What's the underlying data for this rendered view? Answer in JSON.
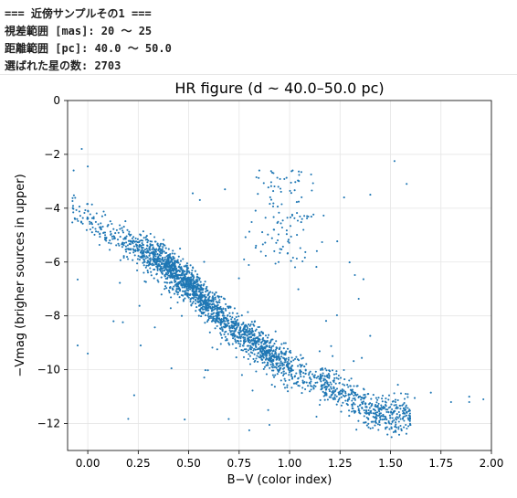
{
  "console": {
    "lines": [
      "=== 近傍サンプルその1 ===",
      "視差範囲 [mas]: 20 〜 25",
      "距離範囲 [pc]: 40.0 〜 50.0",
      "選ばれた星の数: 2703"
    ]
  },
  "chart_data": {
    "type": "scatter",
    "title": "HR figure (d ~ 40.0–50.0 pc)",
    "xlabel": "B−V (color index)",
    "ylabel": "−Vmag (brigher sources in upper)",
    "xlim": [
      -0.1,
      2.0
    ],
    "ylim": [
      0,
      -13
    ],
    "xticks": [
      "0.00",
      "0.25",
      "0.50",
      "0.75",
      "1.00",
      "1.25",
      "1.50",
      "1.75",
      "2.00"
    ],
    "yticks": [
      "0",
      "−2",
      "−4",
      "−6",
      "−8",
      "−10",
      "−12"
    ],
    "grid": true,
    "point_color": "#1f77b4",
    "n_points": 2703,
    "main_sequence_trend": [
      {
        "bv": -0.05,
        "neg_vmag": -4.0
      },
      {
        "bv": 0.05,
        "neg_vmag": -4.8
      },
      {
        "bv": 0.2,
        "neg_vmag": -5.3
      },
      {
        "bv": 0.35,
        "neg_vmag": -5.9
      },
      {
        "bv": 0.5,
        "neg_vmag": -6.8
      },
      {
        "bv": 0.6,
        "neg_vmag": -7.6
      },
      {
        "bv": 0.7,
        "neg_vmag": -8.3
      },
      {
        "bv": 0.8,
        "neg_vmag": -8.9
      },
      {
        "bv": 0.9,
        "neg_vmag": -9.4
      },
      {
        "bv": 1.0,
        "neg_vmag": -9.9
      },
      {
        "bv": 1.1,
        "neg_vmag": -10.3
      },
      {
        "bv": 1.2,
        "neg_vmag": -10.6
      },
      {
        "bv": 1.3,
        "neg_vmag": -11.0
      },
      {
        "bv": 1.4,
        "neg_vmag": -11.5
      },
      {
        "bv": 1.5,
        "neg_vmag": -11.7
      }
    ],
    "giant_branch_region": {
      "bv_range": [
        0.85,
        1.1
      ],
      "neg_vmag_range": [
        -2.6,
        -6.2
      ]
    },
    "sample_points": [
      {
        "bv": -0.03,
        "neg_vmag": -1.8
      },
      {
        "bv": -0.07,
        "neg_vmag": -2.6
      },
      {
        "bv": 0.0,
        "neg_vmag": -2.45
      },
      {
        "bv": 1.52,
        "neg_vmag": -2.25
      },
      {
        "bv": 1.58,
        "neg_vmag": -3.1
      },
      {
        "bv": 0.52,
        "neg_vmag": -3.45
      },
      {
        "bv": 0.68,
        "neg_vmag": -3.3
      },
      {
        "bv": 0.85,
        "neg_vmag": -2.6
      },
      {
        "bv": 0.92,
        "neg_vmag": -2.7
      },
      {
        "bv": 1.27,
        "neg_vmag": -3.6
      },
      {
        "bv": 1.4,
        "neg_vmag": -3.5
      },
      {
        "bv": -0.05,
        "neg_vmag": -6.65
      },
      {
        "bv": -0.05,
        "neg_vmag": -9.1
      },
      {
        "bv": 0.0,
        "neg_vmag": -9.4
      },
      {
        "bv": 0.23,
        "neg_vmag": -10.95
      },
      {
        "bv": 0.48,
        "neg_vmag": -11.85
      },
      {
        "bv": 0.8,
        "neg_vmag": -12.25
      },
      {
        "bv": 0.9,
        "neg_vmag": -12.05
      },
      {
        "bv": 1.8,
        "neg_vmag": -11.2
      },
      {
        "bv": 1.89,
        "neg_vmag": -11.0
      },
      {
        "bv": 1.89,
        "neg_vmag": -11.2
      },
      {
        "bv": 1.96,
        "neg_vmag": -11.1
      },
      {
        "bv": 1.7,
        "neg_vmag": -10.85
      },
      {
        "bv": 1.62,
        "neg_vmag": -11.05
      }
    ]
  }
}
